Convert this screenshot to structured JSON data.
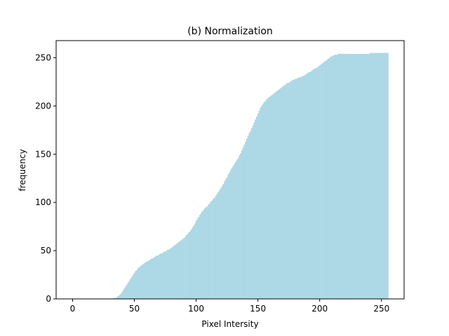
{
  "chart_data": {
    "type": "bar",
    "title": "(b) Normalization",
    "x_label": "Pixel Intersity",
    "y_label": "frequency",
    "x": [
      0,
      1,
      2,
      3,
      4,
      5,
      6,
      7,
      8,
      9,
      10,
      11,
      12,
      13,
      14,
      15,
      16,
      17,
      18,
      19,
      20,
      21,
      22,
      23,
      24,
      25,
      26,
      27,
      28,
      29,
      30,
      31,
      32,
      33,
      34,
      35,
      36,
      37,
      38,
      39,
      40,
      41,
      42,
      43,
      44,
      45,
      46,
      47,
      48,
      49,
      50,
      51,
      52,
      53,
      54,
      55,
      56,
      57,
      58,
      59,
      60,
      61,
      62,
      63,
      64,
      65,
      66,
      67,
      68,
      69,
      70,
      71,
      72,
      73,
      74,
      75,
      76,
      77,
      78,
      79,
      80,
      81,
      82,
      83,
      84,
      85,
      86,
      87,
      88,
      89,
      90,
      91,
      92,
      93,
      94,
      95,
      96,
      97,
      98,
      99,
      100,
      101,
      102,
      103,
      104,
      105,
      106,
      107,
      108,
      109,
      110,
      111,
      112,
      113,
      114,
      115,
      116,
      117,
      118,
      119,
      120,
      121,
      122,
      123,
      124,
      125,
      126,
      127,
      128,
      129,
      130,
      131,
      132,
      133,
      134,
      135,
      136,
      137,
      138,
      139,
      140,
      141,
      142,
      143,
      144,
      145,
      146,
      147,
      148,
      149,
      150,
      151,
      152,
      153,
      154,
      155,
      156,
      157,
      158,
      159,
      160,
      161,
      162,
      163,
      164,
      165,
      166,
      167,
      168,
      169,
      170,
      171,
      172,
      173,
      174,
      175,
      176,
      177,
      178,
      179,
      180,
      181,
      182,
      183,
      184,
      185,
      186,
      187,
      188,
      189,
      190,
      191,
      192,
      193,
      194,
      195,
      196,
      197,
      198,
      199,
      200,
      201,
      202,
      203,
      204,
      205,
      206,
      207,
      208,
      209,
      210,
      211,
      212,
      213,
      214,
      215,
      216,
      217,
      218,
      219,
      220,
      221,
      222,
      223,
      224,
      225,
      226,
      227,
      228,
      229,
      230,
      231,
      232,
      233,
      234,
      235,
      236,
      237,
      238,
      239,
      240,
      241,
      242,
      243,
      244,
      245,
      246,
      247,
      248,
      249,
      250,
      251,
      252,
      253,
      254,
      255
    ],
    "values": [
      0,
      0,
      0,
      0,
      0,
      0,
      0,
      0,
      0,
      0,
      0,
      0,
      0,
      0,
      0,
      0,
      0,
      0,
      0,
      0,
      0,
      0,
      0,
      0,
      0,
      0,
      0,
      0,
      0,
      0,
      0,
      0,
      0,
      0,
      1,
      1,
      2,
      3,
      4,
      5,
      7,
      9,
      11,
      13,
      15,
      17,
      19,
      21,
      23,
      25,
      27,
      29,
      30,
      32,
      33,
      34,
      35,
      36,
      37,
      38,
      39,
      39,
      40,
      41,
      42,
      42,
      43,
      44,
      45,
      45,
      46,
      47,
      47,
      48,
      49,
      49,
      50,
      51,
      51,
      52,
      53,
      54,
      55,
      56,
      57,
      58,
      59,
      60,
      61,
      62,
      63,
      64,
      66,
      67,
      69,
      70,
      72,
      74,
      76,
      78,
      81,
      83,
      85,
      87,
      89,
      91,
      92,
      94,
      95,
      96,
      98,
      99,
      101,
      102,
      104,
      105,
      107,
      109,
      111,
      113,
      115,
      117,
      119,
      122,
      124,
      126,
      129,
      131,
      134,
      136,
      138,
      140,
      142,
      144,
      146,
      149,
      151,
      154,
      157,
      160,
      163,
      166,
      169,
      172,
      174,
      177,
      180,
      183,
      186,
      189,
      192,
      195,
      198,
      200,
      202,
      204,
      205,
      207,
      208,
      209,
      210,
      211,
      212,
      213,
      214,
      215,
      216,
      217,
      218,
      219,
      220,
      221,
      222,
      223,
      224,
      224,
      225,
      226,
      227,
      227,
      228,
      228,
      229,
      229,
      230,
      230,
      231,
      231,
      232,
      233,
      234,
      235,
      235,
      236,
      237,
      238,
      239,
      239,
      240,
      241,
      242,
      243,
      244,
      245,
      246,
      247,
      248,
      249,
      250,
      251,
      252,
      252,
      253,
      253,
      253,
      254,
      254,
      254,
      254,
      254,
      254,
      254,
      254,
      254,
      254,
      254,
      254,
      254,
      254,
      254,
      254,
      254,
      254,
      254,
      254,
      254,
      254,
      254,
      254,
      254,
      254,
      255,
      255,
      255,
      255,
      255,
      255,
      255,
      255,
      255,
      255,
      255,
      255,
      255,
      255,
      255
    ],
    "color": "#add8e6",
    "xlim": [
      -13.3,
      268.3
    ],
    "xticks": [
      0,
      50,
      100,
      150,
      200,
      250
    ],
    "ylim": [
      0,
      267.75
    ],
    "yticks": [
      0,
      50,
      100,
      150,
      200,
      250
    ]
  }
}
